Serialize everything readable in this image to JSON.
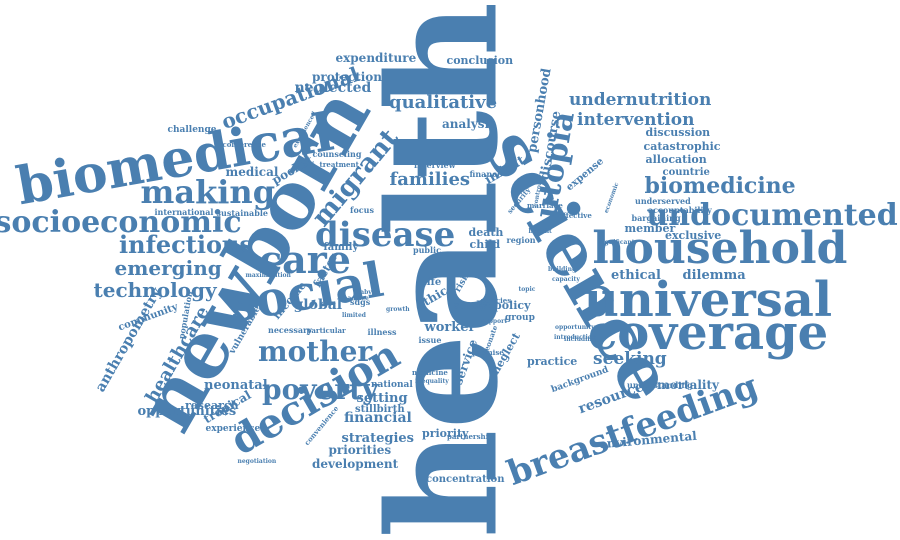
{
  "colors": {
    "word": "#4a7fb0",
    "background": "#ffffff"
  },
  "words": [
    {
      "text": "health",
      "rot": -90
    },
    {
      "text": "newborn",
      "rot": -60
    },
    {
      "text": "science",
      "rot": 60
    },
    {
      "text": "biomedical",
      "rot": -10
    },
    {
      "text": "social",
      "rot": -10
    },
    {
      "text": "decision",
      "rot": -30
    },
    {
      "text": "universal",
      "rot": 0
    },
    {
      "text": "coverage",
      "rot": 0
    },
    {
      "text": "household",
      "rot": 0
    },
    {
      "text": "undocumented",
      "rot": 0
    },
    {
      "text": "socioeconomic",
      "rot": 0
    },
    {
      "text": "making",
      "rot": 0
    },
    {
      "text": "care",
      "rot": 0
    },
    {
      "text": "disease",
      "rot": 0
    },
    {
      "text": "breastfeeding",
      "rot": -20
    },
    {
      "text": "poverty",
      "rot": 0
    },
    {
      "text": "mother",
      "rot": 0
    },
    {
      "text": "biomedicine",
      "rot": 0
    },
    {
      "text": "migrant",
      "rot": -50
    },
    {
      "text": "infectious",
      "rot": 0
    },
    {
      "text": "emerging",
      "rot": 0
    },
    {
      "text": "technology",
      "rot": 0
    },
    {
      "text": "families",
      "rot": 0
    },
    {
      "text": "qualitative",
      "rot": 0
    },
    {
      "text": "occupational",
      "rot": -20
    },
    {
      "text": "utopia",
      "rot": -80
    },
    {
      "text": "intervention",
      "rot": 0
    },
    {
      "text": "undernutrition",
      "rot": 0
    },
    {
      "text": "seeking",
      "rot": 0
    },
    {
      "text": "healthcare",
      "rot": -60
    },
    {
      "text": "anthropometry",
      "rot": -60
    },
    {
      "text": "financial",
      "rot": 0
    },
    {
      "text": "strategies",
      "rot": 0
    },
    {
      "text": "setting",
      "rot": 0
    },
    {
      "text": "neonatal",
      "rot": 0
    },
    {
      "text": "tropical",
      "rot": -30
    },
    {
      "text": "research",
      "rot": 0
    },
    {
      "text": "opportunities",
      "rot": 0
    },
    {
      "text": "environmental",
      "rot": -5
    },
    {
      "text": "resource",
      "rot": -20
    },
    {
      "text": "mortality",
      "rot": 0
    },
    {
      "text": "ethical",
      "rot": 0
    },
    {
      "text": "dilemma",
      "rot": 0
    },
    {
      "text": "priorities",
      "rot": 0
    },
    {
      "text": "development",
      "rot": 0
    },
    {
      "text": "priority",
      "rot": 0
    },
    {
      "text": "concentration",
      "rot": 0
    },
    {
      "text": "analysis",
      "rot": 0
    },
    {
      "text": "neglected",
      "rot": 0
    },
    {
      "text": "protection",
      "rot": 0
    },
    {
      "text": "expenditure",
      "rot": 0
    },
    {
      "text": "conclusion",
      "rot": 0
    },
    {
      "text": "personhood",
      "rot": -80
    },
    {
      "text": "discourse",
      "rot": -80
    },
    {
      "text": "infant",
      "rot": -30
    },
    {
      "text": "global",
      "rot": 0
    },
    {
      "text": "factor",
      "rot": -60
    },
    {
      "text": "income",
      "rot": -50
    },
    {
      "text": "death",
      "rot": 0
    },
    {
      "text": "child",
      "rot": 0
    },
    {
      "text": "ethic",
      "rot": -30
    },
    {
      "text": "worker",
      "rot": 0
    },
    {
      "text": "service",
      "rot": -70
    },
    {
      "text": "neglect",
      "rot": -60
    },
    {
      "text": "practice",
      "rot": 0
    },
    {
      "text": "stillbirth",
      "rot": 0
    },
    {
      "text": "national",
      "rot": 0
    },
    {
      "text": "medical",
      "rot": 0
    },
    {
      "text": "pocket",
      "rot": -30
    },
    {
      "text": "challenge",
      "rot": 0
    },
    {
      "text": "community",
      "rot": -20
    },
    {
      "text": "experience",
      "rot": 0
    },
    {
      "text": "population",
      "rot": -80
    },
    {
      "text": "vulnerable",
      "rot": -60
    },
    {
      "text": "discussion",
      "rot": 0
    },
    {
      "text": "catastrophic",
      "rot": 0
    },
    {
      "text": "allocation",
      "rot": 0
    },
    {
      "text": "countrie",
      "rot": 0
    },
    {
      "text": "member",
      "rot": 0
    },
    {
      "text": "exclusive",
      "rot": 0
    },
    {
      "text": "accountability",
      "rot": 0
    },
    {
      "text": "underserved",
      "rot": 0
    },
    {
      "text": "bargaining",
      "rot": 0
    },
    {
      "text": "expense",
      "rot": -40
    },
    {
      "text": "background",
      "rot": -20
    },
    {
      "text": "understanding",
      "rot": 0
    },
    {
      "text": "study",
      "rot": 0
    },
    {
      "text": "policy",
      "rot": 0
    },
    {
      "text": "group",
      "rot": 0
    },
    {
      "text": "family",
      "rot": 0
    },
    {
      "text": "life",
      "rot": 0
    },
    {
      "text": "risk",
      "rot": -60
    },
    {
      "text": "sdgs",
      "rot": 0
    },
    {
      "text": "region",
      "rot": 0
    },
    {
      "text": "public",
      "rot": 0
    },
    {
      "text": "finance",
      "rot": 0
    },
    {
      "text": "interview",
      "rot": 0
    },
    {
      "text": "focus",
      "rot": 0
    },
    {
      "text": "international",
      "rot": 0
    },
    {
      "text": "sustainable",
      "rot": 0
    },
    {
      "text": "counseling",
      "rot": 0
    },
    {
      "text": "treatment",
      "rot": 0
    },
    {
      "text": "experienced",
      "rot": -60
    },
    {
      "text": "conference",
      "rot": 0
    },
    {
      "text": "necessary",
      "rot": 0
    },
    {
      "text": "partnership",
      "rot": 0
    },
    {
      "text": "issue",
      "rot": 0
    },
    {
      "text": "illness",
      "rot": 0
    },
    {
      "text": "medicine",
      "rot": 0
    },
    {
      "text": "inequality",
      "rot": 0
    },
    {
      "text": "promise",
      "rot": 0
    },
    {
      "text": "neonate",
      "rot": -70
    },
    {
      "text": "policies",
      "rot": 0
    },
    {
      "text": "including",
      "rot": 0
    },
    {
      "text": "marriage",
      "rot": 0
    },
    {
      "text": "effective",
      "rot": 0
    },
    {
      "text": "benefit",
      "rot": 0
    },
    {
      "text": "building",
      "rot": 0
    },
    {
      "text": "capacity",
      "rot": 0
    },
    {
      "text": "topic",
      "rot": 0
    },
    {
      "text": "security",
      "rot": -50
    },
    {
      "text": "case",
      "rot": 0
    },
    {
      "text": "growth",
      "rot": 0
    },
    {
      "text": "advice",
      "rot": 0
    },
    {
      "text": "convenience",
      "rot": -50
    },
    {
      "text": "particular",
      "rot": 0
    },
    {
      "text": "limited",
      "rot": 0
    },
    {
      "text": "support",
      "rot": 0
    },
    {
      "text": "introduction",
      "rot": 0
    },
    {
      "text": "opportunity",
      "rot": 0
    },
    {
      "text": "economic",
      "rot": -70
    },
    {
      "text": "significant",
      "rot": 0
    },
    {
      "text": "control",
      "rot": -80
    },
    {
      "text": "negotiation",
      "rot": 0
    },
    {
      "text": "maximisation",
      "rot": 0
    },
    {
      "text": "baby",
      "rot": 0
    }
  ]
}
